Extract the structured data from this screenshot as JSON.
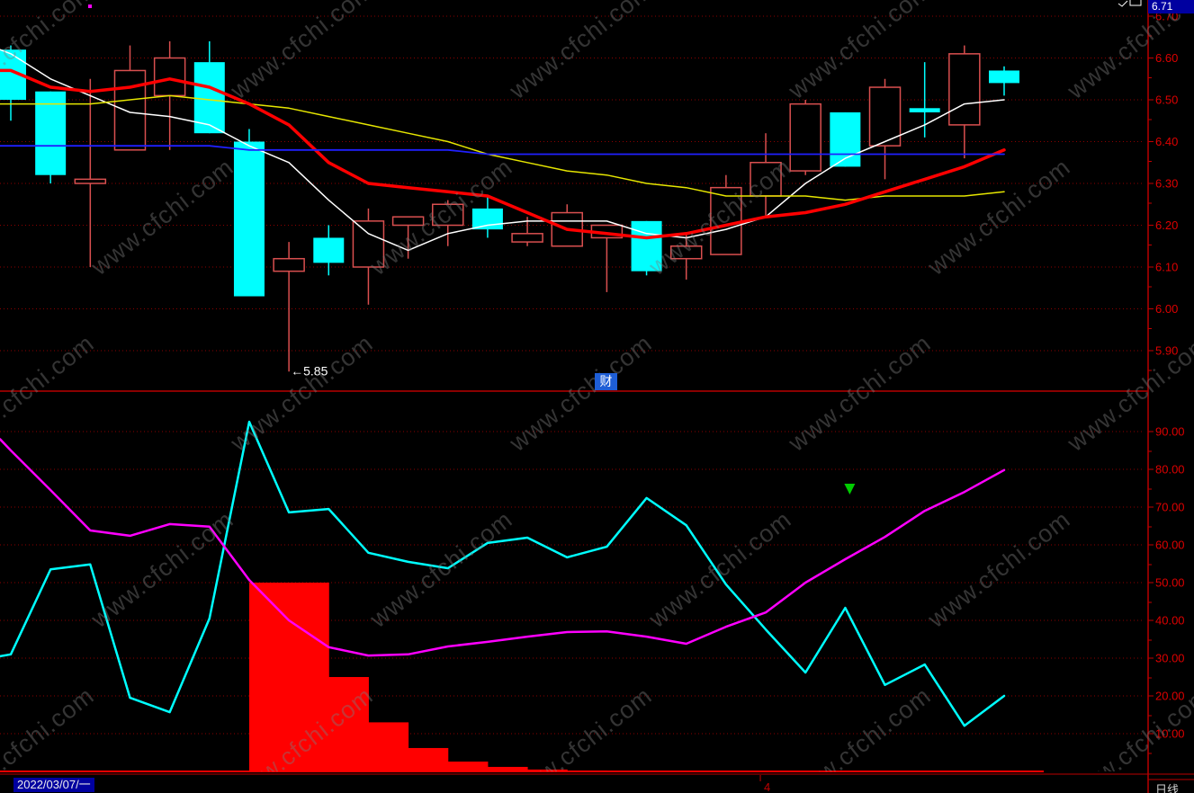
{
  "app": {
    "background": "#000000"
  },
  "watermark": {
    "text": "www.cfchi.com"
  },
  "axis": {
    "color": "#c20000",
    "label_color": "#dd0000",
    "grid_color": "#8b0000",
    "max_price_label": "6.71"
  },
  "colors": {
    "divider": "#8a0000",
    "baseline": "#ff0000",
    "separator": "#7d0000",
    "axis_line": "#b80000",
    "month_label": "#c00000",
    "marker_green": "#00cc00",
    "dot_magenta": "#ff00ff",
    "artifact_white": "#ffffff"
  },
  "status_bar": {
    "date": "2022/03/07/一",
    "period": "日线",
    "month_tick": {
      "candle_index": 20,
      "label": "4"
    }
  },
  "annotations": {
    "fortune_badge": "财"
  },
  "chart_data": [
    {
      "type": "candlestick",
      "panel": "price",
      "title": "",
      "ylim": [
        5.84,
        6.72
      ],
      "y_ticks": [
        "6.70",
        "6.60",
        "6.50",
        "6.40",
        "6.30",
        "6.20",
        "6.10",
        "6.00",
        "5.90"
      ],
      "up_color": "#d94f4f",
      "down_color": "#00ffff",
      "candles": [
        {
          "o": 6.62,
          "h": 6.63,
          "l": 6.45,
          "c": 6.5,
          "dir": "down"
        },
        {
          "o": 6.52,
          "h": 6.52,
          "l": 6.3,
          "c": 6.32,
          "dir": "down"
        },
        {
          "o": 6.3,
          "h": 6.55,
          "l": 6.1,
          "c": 6.31,
          "dir": "up"
        },
        {
          "o": 6.38,
          "h": 6.63,
          "l": 6.38,
          "c": 6.57,
          "dir": "up"
        },
        {
          "o": 6.51,
          "h": 6.64,
          "l": 6.38,
          "c": 6.6,
          "dir": "up"
        },
        {
          "o": 6.59,
          "h": 6.64,
          "l": 6.42,
          "c": 6.42,
          "dir": "down"
        },
        {
          "o": 6.4,
          "h": 6.43,
          "l": 6.03,
          "c": 6.03,
          "dir": "down"
        },
        {
          "o": 6.09,
          "h": 6.16,
          "l": 5.85,
          "c": 6.12,
          "dir": "up"
        },
        {
          "o": 6.17,
          "h": 6.2,
          "l": 6.08,
          "c": 6.11,
          "dir": "down"
        },
        {
          "o": 6.1,
          "h": 6.24,
          "l": 6.01,
          "c": 6.21,
          "dir": "up"
        },
        {
          "o": 6.2,
          "h": 6.22,
          "l": 6.12,
          "c": 6.22,
          "dir": "up"
        },
        {
          "o": 6.2,
          "h": 6.26,
          "l": 6.15,
          "c": 6.25,
          "dir": "up"
        },
        {
          "o": 6.24,
          "h": 6.27,
          "l": 6.17,
          "c": 6.19,
          "dir": "down"
        },
        {
          "o": 6.16,
          "h": 6.22,
          "l": 6.15,
          "c": 6.18,
          "dir": "up"
        },
        {
          "o": 6.15,
          "h": 6.25,
          "l": 6.15,
          "c": 6.23,
          "dir": "up"
        },
        {
          "o": 6.17,
          "h": 6.2,
          "l": 6.04,
          "c": 6.2,
          "dir": "up"
        },
        {
          "o": 6.21,
          "h": 6.21,
          "l": 6.08,
          "c": 6.09,
          "dir": "down"
        },
        {
          "o": 6.12,
          "h": 6.18,
          "l": 6.07,
          "c": 6.15,
          "dir": "up"
        },
        {
          "o": 6.13,
          "h": 6.32,
          "l": 6.13,
          "c": 6.29,
          "dir": "up"
        },
        {
          "o": 6.27,
          "h": 6.42,
          "l": 6.22,
          "c": 6.35,
          "dir": "up"
        },
        {
          "o": 6.33,
          "h": 6.5,
          "l": 6.32,
          "c": 6.49,
          "dir": "up"
        },
        {
          "o": 6.47,
          "h": 6.47,
          "l": 6.34,
          "c": 6.34,
          "dir": "down"
        },
        {
          "o": 6.39,
          "h": 6.55,
          "l": 6.31,
          "c": 6.53,
          "dir": "up"
        },
        {
          "o": 6.48,
          "h": 6.59,
          "l": 6.41,
          "c": 6.47,
          "dir": "down"
        },
        {
          "o": 6.44,
          "h": 6.63,
          "l": 6.36,
          "c": 6.61,
          "dir": "up"
        },
        {
          "o": 6.57,
          "h": 6.58,
          "l": 6.51,
          "c": 6.54,
          "dir": "down"
        }
      ],
      "lines": [
        {
          "name": "ma-fast-white",
          "color": "#ffffff",
          "width": 1.5,
          "lead": 6.62,
          "values": [
            6.61,
            6.55,
            6.51,
            6.47,
            6.46,
            6.44,
            6.39,
            6.35,
            6.26,
            6.18,
            6.14,
            6.18,
            6.2,
            6.21,
            6.21,
            6.21,
            6.18,
            6.17,
            6.19,
            6.22,
            6.3,
            6.36,
            6.4,
            6.44,
            6.49,
            6.5
          ]
        },
        {
          "name": "ma-mid-yellow",
          "color": "#e6e600",
          "width": 1.5,
          "lead": 6.49,
          "values": [
            6.49,
            6.49,
            6.49,
            6.5,
            6.51,
            6.5,
            6.49,
            6.48,
            6.46,
            6.44,
            6.42,
            6.4,
            6.37,
            6.35,
            6.33,
            6.32,
            6.3,
            6.29,
            6.27,
            6.27,
            6.27,
            6.26,
            6.27,
            6.27,
            6.27,
            6.28
          ]
        },
        {
          "name": "ma-slow-red",
          "color": "#ff0000",
          "width": 3.5,
          "lead": 6.57,
          "values": [
            6.57,
            6.53,
            6.52,
            6.53,
            6.55,
            6.53,
            6.49,
            6.44,
            6.35,
            6.3,
            6.29,
            6.28,
            6.27,
            6.23,
            6.19,
            6.18,
            6.17,
            6.18,
            6.2,
            6.22,
            6.23,
            6.25,
            6.28,
            6.31,
            6.34,
            6.38
          ]
        },
        {
          "name": "ma-long-blue",
          "color": "#2020ff",
          "width": 1.8,
          "lead": 6.39,
          "values": [
            6.39,
            6.39,
            6.39,
            6.39,
            6.39,
            6.39,
            6.38,
            6.38,
            6.38,
            6.38,
            6.38,
            6.38,
            6.37,
            6.37,
            6.37,
            6.37,
            6.37,
            6.37,
            6.37,
            6.37,
            6.37,
            6.37,
            6.37,
            6.37,
            6.37,
            6.37
          ]
        }
      ],
      "annotations": [
        {
          "candle_index": 8,
          "text": "←5.85",
          "color": "#ffffff"
        }
      ]
    },
    {
      "type": "line",
      "panel": "indicator",
      "ylim": [
        0,
        95
      ],
      "y_ticks": [
        "90.00",
        "80.00",
        "70.00",
        "60.00",
        "50.00",
        "40.00",
        "30.00",
        "20.00",
        "10.00"
      ],
      "lines": [
        {
          "name": "indicator-cyan",
          "color": "#00ffff",
          "width": 2.5,
          "lead": 30.5,
          "values": [
            31,
            53.5,
            54.8,
            19.5,
            15.7,
            40.5,
            92.6,
            68.6,
            69.5,
            57.9,
            55.5,
            53.8,
            60.5,
            61.9,
            56.7,
            59.5,
            72.4,
            65.2,
            49.5,
            37.6,
            26.2,
            43.3,
            22.9,
            28.3,
            12.1,
            20
          ]
        },
        {
          "name": "indicator-magenta",
          "color": "#ff00ff",
          "width": 2.5,
          "lead": 88,
          "values": [
            85,
            74.5,
            63.8,
            62.4,
            65.5,
            64.8,
            50.7,
            40,
            32.9,
            30.7,
            31,
            33.1,
            34.3,
            35.7,
            36.9,
            37.1,
            35.7,
            33.8,
            38.3,
            42.1,
            50,
            56.2,
            62.1,
            69,
            74,
            79.8
          ]
        }
      ],
      "bars": {
        "color": "#ff0000",
        "values": [
          0,
          0,
          0,
          0,
          0,
          0,
          50,
          50,
          25,
          13,
          6.2,
          2.6,
          1.2,
          0.5,
          0.25,
          0.1,
          0,
          0,
          0,
          0,
          0,
          0,
          0,
          0,
          0,
          0
        ]
      },
      "marker": {
        "candle_index": 22,
        "value": 75,
        "shape": "triangle-down",
        "color": "#00cc00"
      }
    }
  ]
}
